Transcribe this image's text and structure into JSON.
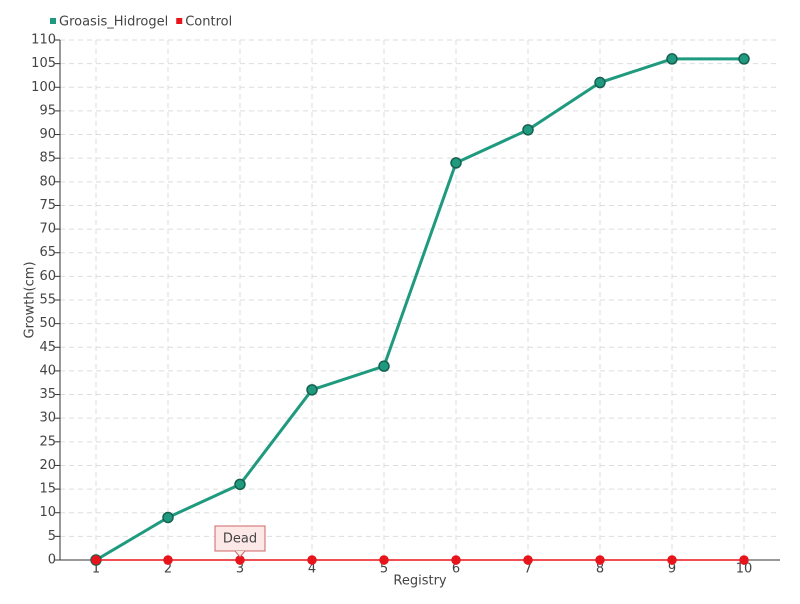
{
  "chart_data": {
    "type": "line",
    "x": [
      1,
      2,
      3,
      4,
      5,
      6,
      7,
      8,
      9,
      10
    ],
    "series": [
      {
        "name": "Groasis_Hidrogel",
        "color": "#1f9a7f",
        "values": [
          0,
          9,
          16,
          36,
          41,
          84,
          91,
          101,
          106,
          106
        ]
      },
      {
        "name": "Control",
        "color": "#e8141c",
        "values": [
          0,
          0,
          0,
          0,
          0,
          0,
          0,
          0,
          0,
          0
        ]
      }
    ],
    "xlabel": "Registry",
    "ylabel": "Growth(cm)",
    "xlim": [
      0.5,
      10.5
    ],
    "xticks": [
      1,
      2,
      3,
      4,
      5,
      6,
      7,
      8,
      9,
      10
    ],
    "ylim": [
      0,
      110
    ],
    "yticks": [
      0,
      5,
      10,
      15,
      20,
      25,
      30,
      35,
      40,
      45,
      50,
      55,
      60,
      65,
      70,
      75,
      80,
      85,
      90,
      95,
      100,
      105,
      110
    ],
    "grid": true,
    "legend": "top-left",
    "annotations": [
      {
        "text": "Dead",
        "series": 1,
        "x": 3
      }
    ]
  }
}
